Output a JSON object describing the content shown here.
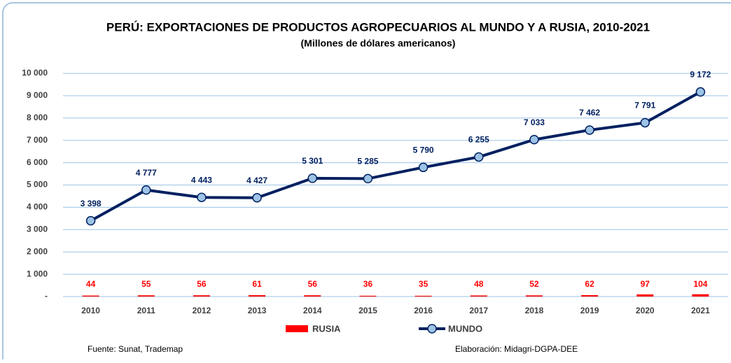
{
  "chart_data": {
    "type": "combo",
    "title": "PERÚ: EXPORTACIONES DE PRODUCTOS AGROPECUARIOS AL MUNDO Y A RUSIA, 2010-2021",
    "subtitle": "(Millones de dólares americanos)",
    "categories": [
      "2010",
      "2011",
      "2012",
      "2013",
      "2014",
      "2015",
      "2016",
      "2017",
      "2018",
      "2019",
      "2020",
      "2021"
    ],
    "series": [
      {
        "name": "RUSIA",
        "type": "bar",
        "color": "#ff0000",
        "values": [
          44,
          55,
          56,
          61,
          56,
          36,
          35,
          48,
          52,
          62,
          97,
          104
        ]
      },
      {
        "name": "MUNDO",
        "type": "line",
        "color": "#002060",
        "marker_color": "#9dc3e6",
        "values": [
          3398,
          4777,
          4443,
          4427,
          5301,
          5285,
          5790,
          6255,
          7033,
          7462,
          7791,
          9172
        ],
        "value_labels": [
          "3 398",
          "4 777",
          "4 443",
          "4 427",
          "5 301",
          "5 285",
          "5 790",
          "6 255",
          "7 033",
          "7 462",
          "7 791",
          "9 172"
        ]
      }
    ],
    "ylim": [
      0,
      10000
    ],
    "yticks": [
      {
        "value": 0,
        "label": "-"
      },
      {
        "value": 1000,
        "label": "1 000"
      },
      {
        "value": 2000,
        "label": "2 000"
      },
      {
        "value": 3000,
        "label": "3 000"
      },
      {
        "value": 4000,
        "label": "4 000"
      },
      {
        "value": 5000,
        "label": "5 000"
      },
      {
        "value": 6000,
        "label": "6 000"
      },
      {
        "value": 7000,
        "label": "7 000"
      },
      {
        "value": 8000,
        "label": "8 000"
      },
      {
        "value": 9000,
        "label": "9 000"
      },
      {
        "value": 10000,
        "label": "10 000"
      }
    ],
    "grid": true,
    "legend": "bottom",
    "source": "Fuente: Sunat, Trademap",
    "credit": "Elaboración: Midagri-DGPA-DEE"
  }
}
